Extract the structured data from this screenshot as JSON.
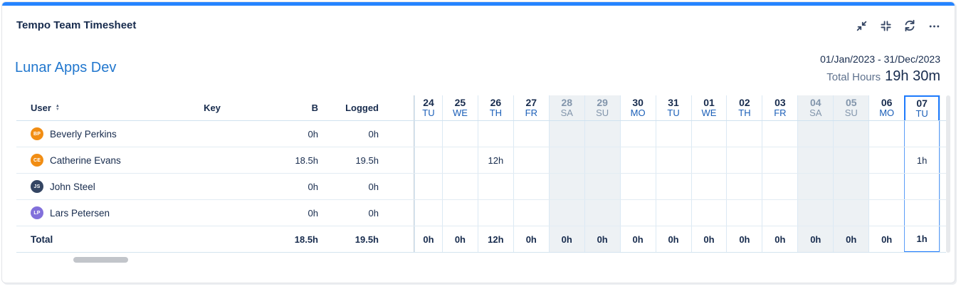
{
  "card": {
    "title": "Tempo Team Timesheet",
    "team_name": "Lunar Apps Dev",
    "date_range": "01/Jan/2023 - 31/Dec/2023",
    "total_hours_label": "Total Hours",
    "total_hours_value": "19h 30m",
    "toolbar_icons": [
      "collapse-diagonal-icon",
      "compress-corners-icon",
      "refresh-icon",
      "ellipsis-icon"
    ],
    "accent_color": "#2684FF"
  },
  "table": {
    "headers": {
      "user": "User",
      "key": "Key",
      "b": "B",
      "logged": "Logged"
    },
    "days": [
      {
        "num": "24",
        "dow": "TU",
        "weekend": false,
        "today": false
      },
      {
        "num": "25",
        "dow": "WE",
        "weekend": false,
        "today": false
      },
      {
        "num": "26",
        "dow": "TH",
        "weekend": false,
        "today": false
      },
      {
        "num": "27",
        "dow": "FR",
        "weekend": false,
        "today": false
      },
      {
        "num": "28",
        "dow": "SA",
        "weekend": true,
        "today": false
      },
      {
        "num": "29",
        "dow": "SU",
        "weekend": true,
        "today": false
      },
      {
        "num": "30",
        "dow": "MO",
        "weekend": false,
        "today": false
      },
      {
        "num": "31",
        "dow": "TU",
        "weekend": false,
        "today": false
      },
      {
        "num": "01",
        "dow": "WE",
        "weekend": false,
        "today": false
      },
      {
        "num": "02",
        "dow": "TH",
        "weekend": false,
        "today": false
      },
      {
        "num": "03",
        "dow": "FR",
        "weekend": false,
        "today": false
      },
      {
        "num": "04",
        "dow": "SA",
        "weekend": true,
        "today": false
      },
      {
        "num": "05",
        "dow": "SU",
        "weekend": true,
        "today": false
      },
      {
        "num": "06",
        "dow": "MO",
        "weekend": false,
        "today": false
      },
      {
        "num": "07",
        "dow": "TU",
        "weekend": false,
        "today": true
      }
    ],
    "rows": [
      {
        "name": "Beverly Perkins",
        "initials": "BP",
        "avatar_color": "#F18D13",
        "key": "",
        "b": "0h",
        "logged": "0h",
        "cells": [
          "",
          "",
          "",
          "",
          "",
          "",
          "",
          "",
          "",
          "",
          "",
          "",
          "",
          "",
          ""
        ]
      },
      {
        "name": "Catherine Evans",
        "initials": "CE",
        "avatar_color": "#F18D13",
        "key": "",
        "b": "18.5h",
        "logged": "19.5h",
        "cells": [
          "",
          "",
          "12h",
          "",
          "",
          "",
          "",
          "",
          "",
          "",
          "",
          "",
          "",
          "",
          "1h"
        ]
      },
      {
        "name": "John Steel",
        "initials": "JS",
        "avatar_color": "#344563",
        "key": "",
        "b": "0h",
        "logged": "0h",
        "cells": [
          "",
          "",
          "",
          "",
          "",
          "",
          "",
          "",
          "",
          "",
          "",
          "",
          "",
          "",
          ""
        ]
      },
      {
        "name": "Lars Petersen",
        "initials": "LP",
        "avatar_color": "#8270DB",
        "key": "",
        "b": "0h",
        "logged": "0h",
        "cells": [
          "",
          "",
          "",
          "",
          "",
          "",
          "",
          "",
          "",
          "",
          "",
          "",
          "",
          "",
          ""
        ]
      }
    ],
    "total": {
      "label": "Total",
      "b": "18.5h",
      "logged": "19.5h",
      "cells": [
        "0h",
        "0h",
        "12h",
        "0h",
        "0h",
        "0h",
        "0h",
        "0h",
        "0h",
        "0h",
        "0h",
        "0h",
        "0h",
        "0h",
        "1h"
      ]
    }
  },
  "colors": {
    "today_border": "#1D7AFC",
    "weekend_bg": "#EDF1F4",
    "day_number": "#172B4D",
    "day_dow": "#1B5FB8",
    "weekend_text": "#8295AB"
  }
}
